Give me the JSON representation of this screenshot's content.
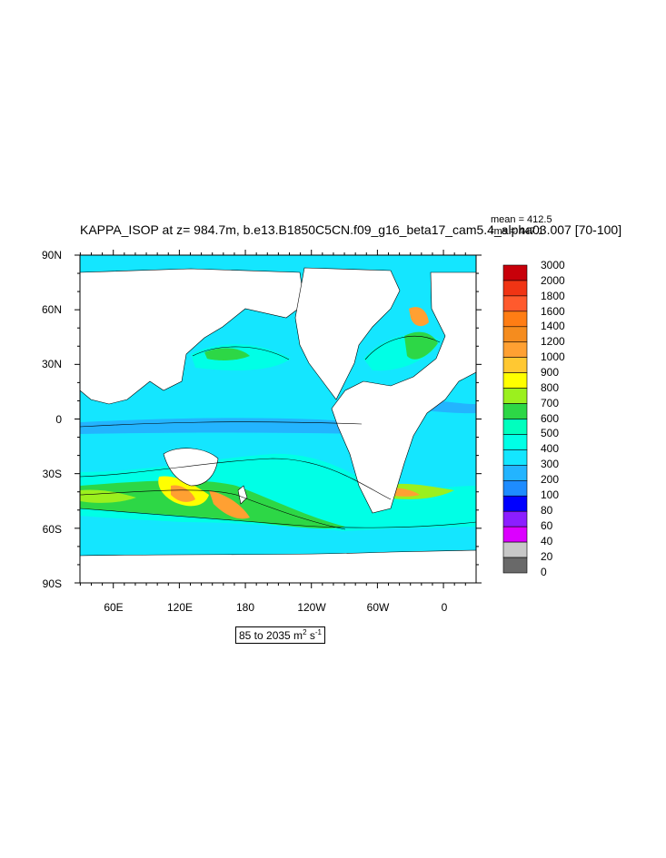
{
  "title": "KAPPA_ISOP at z= 984.7m, b.e13.B1850C5CN.f09_g16_beta17_cam5.4_alpha03.007 [70-100]",
  "stats": {
    "mean": "mean = 412.5",
    "rms": "rms = 447.1"
  },
  "units": {
    "range": "85 to 2035 m",
    "sup1": "2",
    "mid": " s",
    "sup2": "-1"
  },
  "lat_labels": [
    "90N",
    "60N",
    "30N",
    "0",
    "30S",
    "60S",
    "90S"
  ],
  "lon_labels": [
    "60E",
    "120E",
    "180",
    "120W",
    "60W",
    "0"
  ],
  "colorbar": {
    "levels": [
      "3000",
      "2000",
      "1800",
      "1600",
      "1400",
      "1200",
      "1000",
      "900",
      "800",
      "700",
      "600",
      "500",
      "400",
      "300",
      "200",
      "100",
      "80",
      "60",
      "40",
      "20",
      "0"
    ],
    "colors": [
      "#c8000a",
      "#f03414",
      "#ff5a2d",
      "#ff7d14",
      "#f58c1e",
      "#ffa032",
      "#ffc832",
      "#ffff00",
      "#9bf01e",
      "#2dd746",
      "#00ffbe",
      "#00ffe6",
      "#14e6ff",
      "#23b4ff",
      "#1e8cff",
      "#0000ff",
      "#8c1eff",
      "#dc00ff",
      "#c8c8c8",
      "#696969"
    ]
  },
  "colors": {
    "ocean_base": "#14e6ff",
    "land": "#ffffff"
  }
}
